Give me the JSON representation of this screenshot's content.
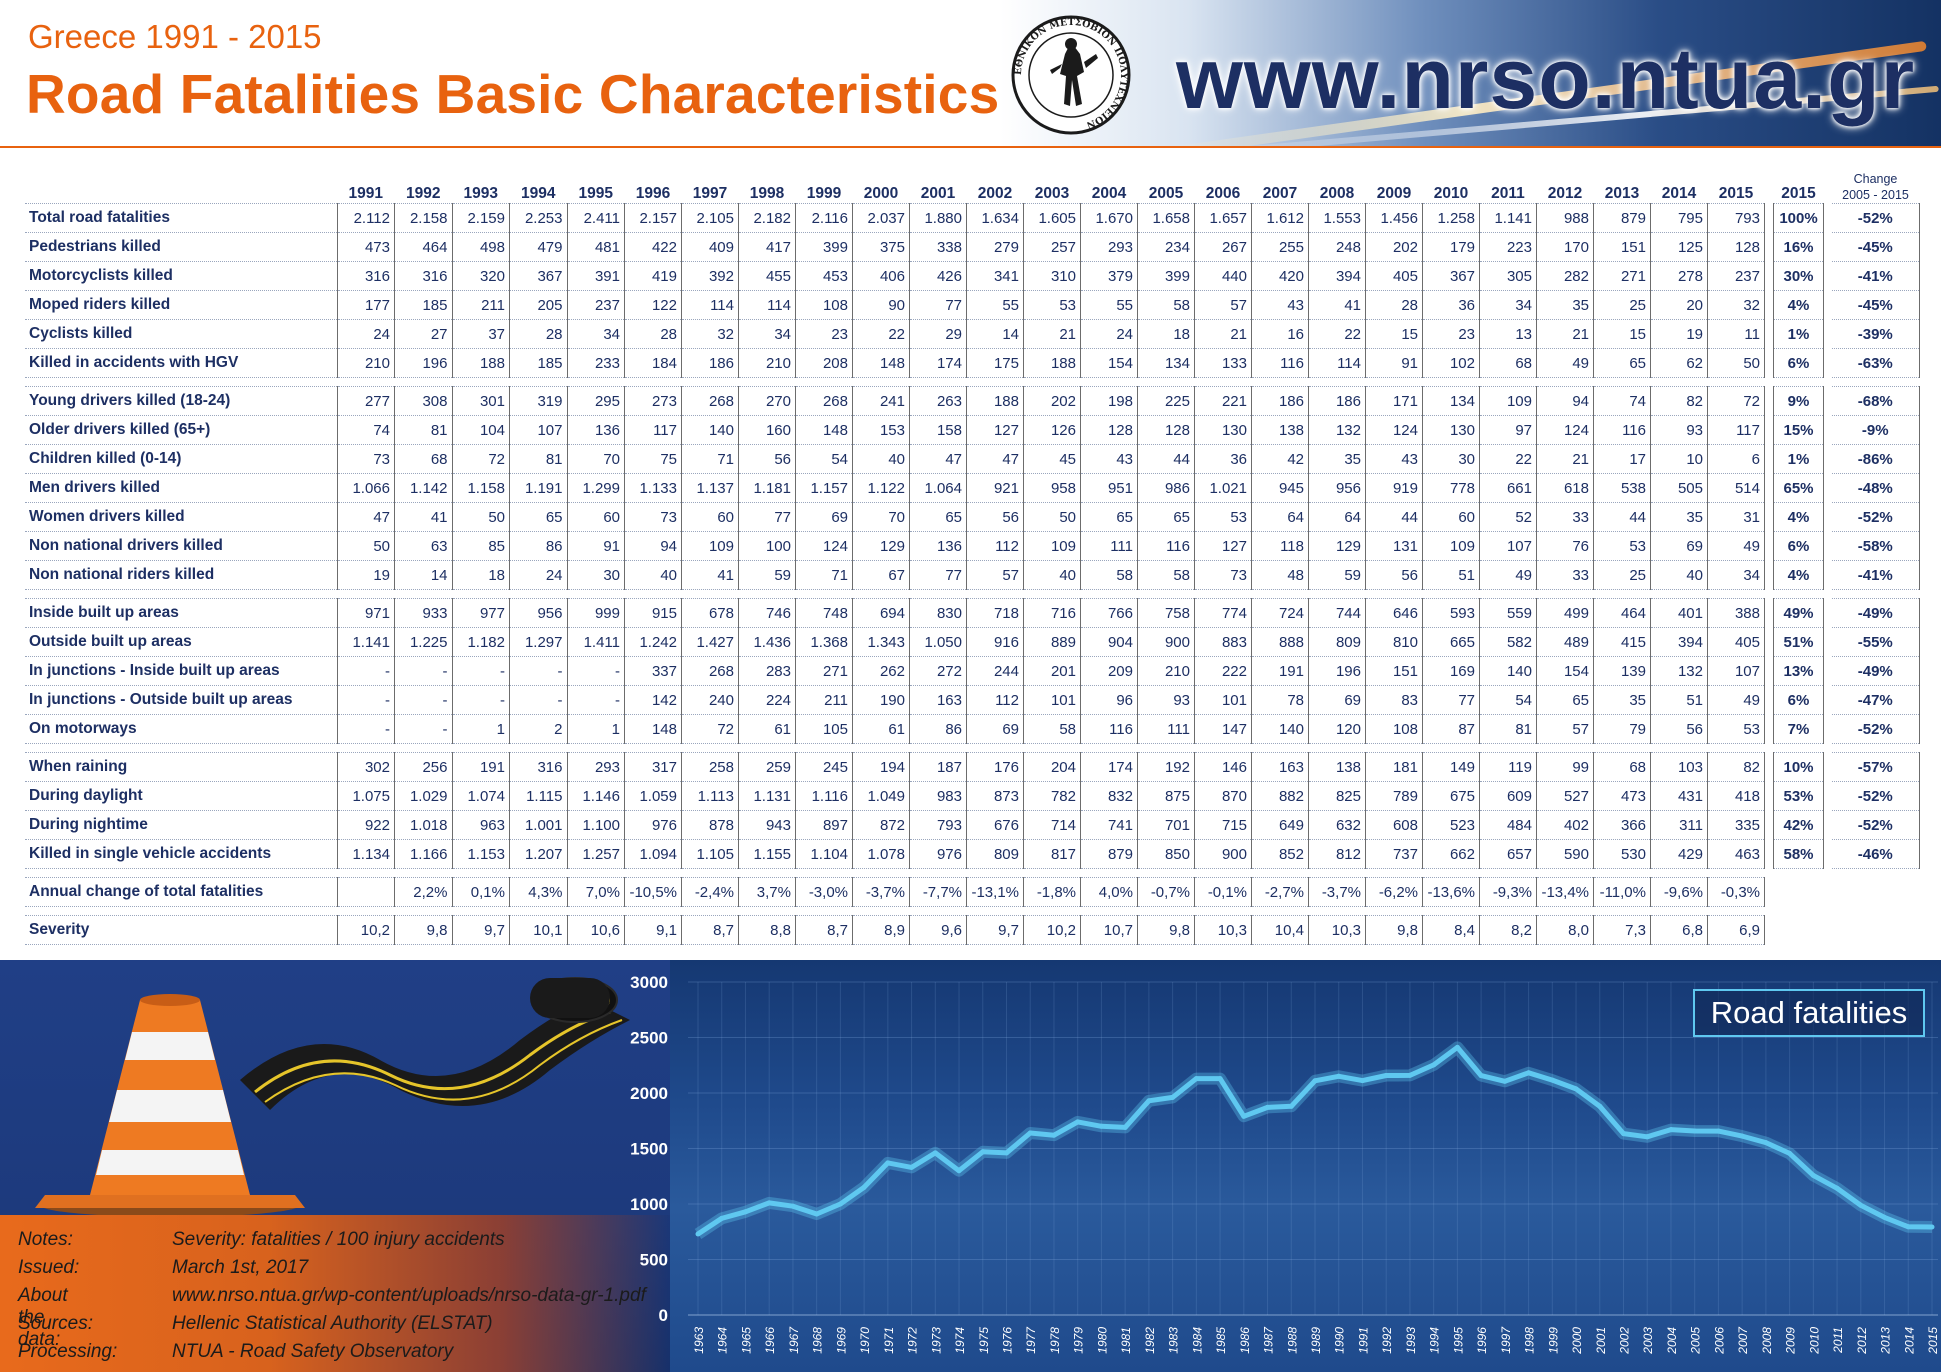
{
  "header": {
    "subtitle": "Greece 1991 - 2015",
    "title": "Road Fatalities Basic Characteristics",
    "website": "www.nrso.ntua.gr",
    "seal_text": "ΕΘΝΙΚΟΝ ΜΕΤΣΟΒΙΟΝ ΠΟΛΥΤΕΧΝΕΙΟΝ",
    "accent_color": "#e8620f",
    "text_color": "#1d2f63"
  },
  "table": {
    "years": [
      "1991",
      "1992",
      "1993",
      "1994",
      "1995",
      "1996",
      "1997",
      "1998",
      "1999",
      "2000",
      "2001",
      "2002",
      "2003",
      "2004",
      "2005",
      "2006",
      "2007",
      "2008",
      "2009",
      "2010",
      "2011",
      "2012",
      "2013",
      "2014",
      "2015"
    ],
    "share_header": "2015",
    "change_header_top": "Change",
    "change_header_bottom": "2005 - 2015",
    "groups": [
      [
        {
          "label": "Total road fatalities",
          "values": [
            "2.112",
            "2.158",
            "2.159",
            "2.253",
            "2.411",
            "2.157",
            "2.105",
            "2.182",
            "2.116",
            "2.037",
            "1.880",
            "1.634",
            "1.605",
            "1.670",
            "1.658",
            "1.657",
            "1.612",
            "1.553",
            "1.456",
            "1.258",
            "1.141",
            "988",
            "879",
            "795",
            "793"
          ],
          "share": "100%",
          "change": "-52%"
        },
        {
          "label": "Pedestrians killed",
          "values": [
            "473",
            "464",
            "498",
            "479",
            "481",
            "422",
            "409",
            "417",
            "399",
            "375",
            "338",
            "279",
            "257",
            "293",
            "234",
            "267",
            "255",
            "248",
            "202",
            "179",
            "223",
            "170",
            "151",
            "125",
            "128"
          ],
          "share": "16%",
          "change": "-45%"
        },
        {
          "label": "Motorcyclists killed",
          "values": [
            "316",
            "316",
            "320",
            "367",
            "391",
            "419",
            "392",
            "455",
            "453",
            "406",
            "426",
            "341",
            "310",
            "379",
            "399",
            "440",
            "420",
            "394",
            "405",
            "367",
            "305",
            "282",
            "271",
            "278",
            "237"
          ],
          "share": "30%",
          "change": "-41%"
        },
        {
          "label": "Moped riders killed",
          "values": [
            "177",
            "185",
            "211",
            "205",
            "237",
            "122",
            "114",
            "114",
            "108",
            "90",
            "77",
            "55",
            "53",
            "55",
            "58",
            "57",
            "43",
            "41",
            "28",
            "36",
            "34",
            "35",
            "25",
            "20",
            "32"
          ],
          "share": "4%",
          "change": "-45%"
        },
        {
          "label": "Cyclists killed",
          "values": [
            "24",
            "27",
            "37",
            "28",
            "34",
            "28",
            "32",
            "34",
            "23",
            "22",
            "29",
            "14",
            "21",
            "24",
            "18",
            "21",
            "16",
            "22",
            "15",
            "23",
            "13",
            "21",
            "15",
            "19",
            "11"
          ],
          "share": "1%",
          "change": "-39%"
        },
        {
          "label": "Killed in accidents with HGV",
          "values": [
            "210",
            "196",
            "188",
            "185",
            "233",
            "184",
            "186",
            "210",
            "208",
            "148",
            "174",
            "175",
            "188",
            "154",
            "134",
            "133",
            "116",
            "114",
            "91",
            "102",
            "68",
            "49",
            "65",
            "62",
            "50"
          ],
          "share": "6%",
          "change": "-63%"
        }
      ],
      [
        {
          "label": "Young drivers killed (18-24)",
          "values": [
            "277",
            "308",
            "301",
            "319",
            "295",
            "273",
            "268",
            "270",
            "268",
            "241",
            "263",
            "188",
            "202",
            "198",
            "225",
            "221",
            "186",
            "186",
            "171",
            "134",
            "109",
            "94",
            "74",
            "82",
            "72"
          ],
          "share": "9%",
          "change": "-68%"
        },
        {
          "label": "Older drivers killed (65+)",
          "values": [
            "74",
            "81",
            "104",
            "107",
            "136",
            "117",
            "140",
            "160",
            "148",
            "153",
            "158",
            "127",
            "126",
            "128",
            "128",
            "130",
            "138",
            "132",
            "124",
            "130",
            "97",
            "124",
            "116",
            "93",
            "117"
          ],
          "share": "15%",
          "change": "-9%"
        },
        {
          "label": "Children killed (0-14)",
          "values": [
            "73",
            "68",
            "72",
            "81",
            "70",
            "75",
            "71",
            "56",
            "54",
            "40",
            "47",
            "47",
            "45",
            "43",
            "44",
            "36",
            "42",
            "35",
            "43",
            "30",
            "22",
            "21",
            "17",
            "10",
            "6"
          ],
          "share": "1%",
          "change": "-86%"
        },
        {
          "label": "Men drivers killed",
          "values": [
            "1.066",
            "1.142",
            "1.158",
            "1.191",
            "1.299",
            "1.133",
            "1.137",
            "1.181",
            "1.157",
            "1.122",
            "1.064",
            "921",
            "958",
            "951",
            "986",
            "1.021",
            "945",
            "956",
            "919",
            "778",
            "661",
            "618",
            "538",
            "505",
            "514"
          ],
          "share": "65%",
          "change": "-48%"
        },
        {
          "label": "Women drivers killed",
          "values": [
            "47",
            "41",
            "50",
            "65",
            "60",
            "73",
            "60",
            "77",
            "69",
            "70",
            "65",
            "56",
            "50",
            "65",
            "65",
            "53",
            "64",
            "64",
            "44",
            "60",
            "52",
            "33",
            "44",
            "35",
            "31"
          ],
          "share": "4%",
          "change": "-52%"
        },
        {
          "label": "Non national drivers killed",
          "values": [
            "50",
            "63",
            "85",
            "86",
            "91",
            "94",
            "109",
            "100",
            "124",
            "129",
            "136",
            "112",
            "109",
            "111",
            "116",
            "127",
            "118",
            "129",
            "131",
            "109",
            "107",
            "76",
            "53",
            "69",
            "49"
          ],
          "share": "6%",
          "change": "-58%"
        },
        {
          "label": "Non national riders killed",
          "values": [
            "19",
            "14",
            "18",
            "24",
            "30",
            "40",
            "41",
            "59",
            "71",
            "67",
            "77",
            "57",
            "40",
            "58",
            "58",
            "73",
            "48",
            "59",
            "56",
            "51",
            "49",
            "33",
            "25",
            "40",
            "34"
          ],
          "share": "4%",
          "change": "-41%"
        }
      ],
      [
        {
          "label": "Inside built up areas",
          "values": [
            "971",
            "933",
            "977",
            "956",
            "999",
            "915",
            "678",
            "746",
            "748",
            "694",
            "830",
            "718",
            "716",
            "766",
            "758",
            "774",
            "724",
            "744",
            "646",
            "593",
            "559",
            "499",
            "464",
            "401",
            "388"
          ],
          "share": "49%",
          "change": "-49%"
        },
        {
          "label": "Outside built up areas",
          "values": [
            "1.141",
            "1.225",
            "1.182",
            "1.297",
            "1.411",
            "1.242",
            "1.427",
            "1.436",
            "1.368",
            "1.343",
            "1.050",
            "916",
            "889",
            "904",
            "900",
            "883",
            "888",
            "809",
            "810",
            "665",
            "582",
            "489",
            "415",
            "394",
            "405"
          ],
          "share": "51%",
          "change": "-55%"
        },
        {
          "label": "In junctions - Inside built up areas",
          "values": [
            "-",
            "-",
            "-",
            "-",
            "-",
            "337",
            "268",
            "283",
            "271",
            "262",
            "272",
            "244",
            "201",
            "209",
            "210",
            "222",
            "191",
            "196",
            "151",
            "169",
            "140",
            "154",
            "139",
            "132",
            "107"
          ],
          "share": "13%",
          "change": "-49%"
        },
        {
          "label": "In junctions - Outside built up areas",
          "values": [
            "-",
            "-",
            "-",
            "-",
            "-",
            "142",
            "240",
            "224",
            "211",
            "190",
            "163",
            "112",
            "101",
            "96",
            "93",
            "101",
            "78",
            "69",
            "83",
            "77",
            "54",
            "65",
            "35",
            "51",
            "49"
          ],
          "share": "6%",
          "change": "-47%"
        },
        {
          "label": "On motorways",
          "values": [
            "-",
            "-",
            "1",
            "2",
            "1",
            "148",
            "72",
            "61",
            "105",
            "61",
            "86",
            "69",
            "58",
            "116",
            "111",
            "147",
            "140",
            "120",
            "108",
            "87",
            "81",
            "57",
            "79",
            "56",
            "53"
          ],
          "share": "7%",
          "change": "-52%"
        }
      ],
      [
        {
          "label": "When raining",
          "values": [
            "302",
            "256",
            "191",
            "316",
            "293",
            "317",
            "258",
            "259",
            "245",
            "194",
            "187",
            "176",
            "204",
            "174",
            "192",
            "146",
            "163",
            "138",
            "181",
            "149",
            "119",
            "99",
            "68",
            "103",
            "82"
          ],
          "share": "10%",
          "change": "-57%"
        },
        {
          "label": "During daylight",
          "values": [
            "1.075",
            "1.029",
            "1.074",
            "1.115",
            "1.146",
            "1.059",
            "1.113",
            "1.131",
            "1.116",
            "1.049",
            "983",
            "873",
            "782",
            "832",
            "875",
            "870",
            "882",
            "825",
            "789",
            "675",
            "609",
            "527",
            "473",
            "431",
            "418"
          ],
          "share": "53%",
          "change": "-52%"
        },
        {
          "label": "During nightime",
          "values": [
            "922",
            "1.018",
            "963",
            "1.001",
            "1.100",
            "976",
            "878",
            "943",
            "897",
            "872",
            "793",
            "676",
            "714",
            "741",
            "701",
            "715",
            "649",
            "632",
            "608",
            "523",
            "484",
            "402",
            "366",
            "311",
            "335"
          ],
          "share": "42%",
          "change": "-52%"
        },
        {
          "label": "Killed in single vehicle accidents",
          "values": [
            "1.134",
            "1.166",
            "1.153",
            "1.207",
            "1.257",
            "1.094",
            "1.105",
            "1.155",
            "1.104",
            "1.078",
            "976",
            "809",
            "817",
            "879",
            "850",
            "900",
            "852",
            "812",
            "737",
            "662",
            "657",
            "590",
            "530",
            "429",
            "463"
          ],
          "share": "58%",
          "change": "-46%"
        }
      ],
      [
        {
          "label": "Annual change of total fatalities",
          "values": [
            "",
            "2,2%",
            "0,1%",
            "4,3%",
            "7,0%",
            "-10,5%",
            "-2,4%",
            "3,7%",
            "-3,0%",
            "-3,7%",
            "-7,7%",
            "-13,1%",
            "-1,8%",
            "4,0%",
            "-0,7%",
            "-0,1%",
            "-2,7%",
            "-3,7%",
            "-6,2%",
            "-13,6%",
            "-9,3%",
            "-13,4%",
            "-11,0%",
            "-9,6%",
            "-0,3%"
          ],
          "share": "",
          "change": ""
        }
      ],
      [
        {
          "label": "Severity",
          "values": [
            "10,2",
            "9,8",
            "9,7",
            "10,1",
            "10,6",
            "9,1",
            "8,7",
            "8,8",
            "8,7",
            "8,9",
            "9,6",
            "9,7",
            "10,2",
            "10,7",
            "9,8",
            "10,3",
            "10,4",
            "10,3",
            "9,8",
            "8,4",
            "8,2",
            "8,0",
            "7,3",
            "6,8",
            "6,9"
          ],
          "share": "",
          "change": ""
        }
      ]
    ]
  },
  "notes": [
    {
      "key": "Notes:",
      "value": "Severity: fatalities / 100 injury accidents"
    },
    {
      "key": "Issued:",
      "value": "March 1st, 2017"
    },
    {
      "key": "About the data:",
      "value": "www.nrso.ntua.gr/wp-content/uploads/nrso-data-gr-1.pdf"
    },
    {
      "key": "Sources:",
      "value": "Hellenic Statistical Authority (ELSTAT)"
    },
    {
      "key": "Processing:",
      "value": "NTUA - Road Safety Observatory"
    }
  ],
  "chart_data": {
    "type": "line",
    "title": "Road fatalities",
    "line_color": "#5fc8f0",
    "ylim": [
      0,
      3000
    ],
    "yticks": [
      0,
      500,
      1000,
      1500,
      2000,
      2500,
      3000
    ],
    "x": [
      "1963",
      "1964",
      "1965",
      "1966",
      "1967",
      "1968",
      "1969",
      "1970",
      "1971",
      "1972",
      "1973",
      "1974",
      "1975",
      "1976",
      "1977",
      "1978",
      "1979",
      "1980",
      "1981",
      "1982",
      "1983",
      "1984",
      "1985",
      "1986",
      "1987",
      "1988",
      "1989",
      "1990",
      "1991",
      "1992",
      "1993",
      "1994",
      "1995",
      "1996",
      "1997",
      "1998",
      "1999",
      "2000",
      "2001",
      "2002",
      "2003",
      "2004",
      "2005",
      "2006",
      "2007",
      "2008",
      "2009",
      "2010",
      "2011",
      "2012",
      "2013",
      "2014",
      "2015"
    ],
    "values": [
      730,
      870,
      930,
      1010,
      980,
      910,
      1000,
      1150,
      1370,
      1330,
      1460,
      1300,
      1470,
      1460,
      1640,
      1620,
      1740,
      1700,
      1690,
      1930,
      1960,
      2130,
      2130,
      1790,
      1870,
      1880,
      2110,
      2150,
      2112,
      2158,
      2159,
      2253,
      2411,
      2157,
      2105,
      2182,
      2116,
      2037,
      1880,
      1634,
      1605,
      1670,
      1658,
      1657,
      1612,
      1553,
      1456,
      1258,
      1141,
      988,
      879,
      795,
      793
    ],
    "grid": true
  }
}
